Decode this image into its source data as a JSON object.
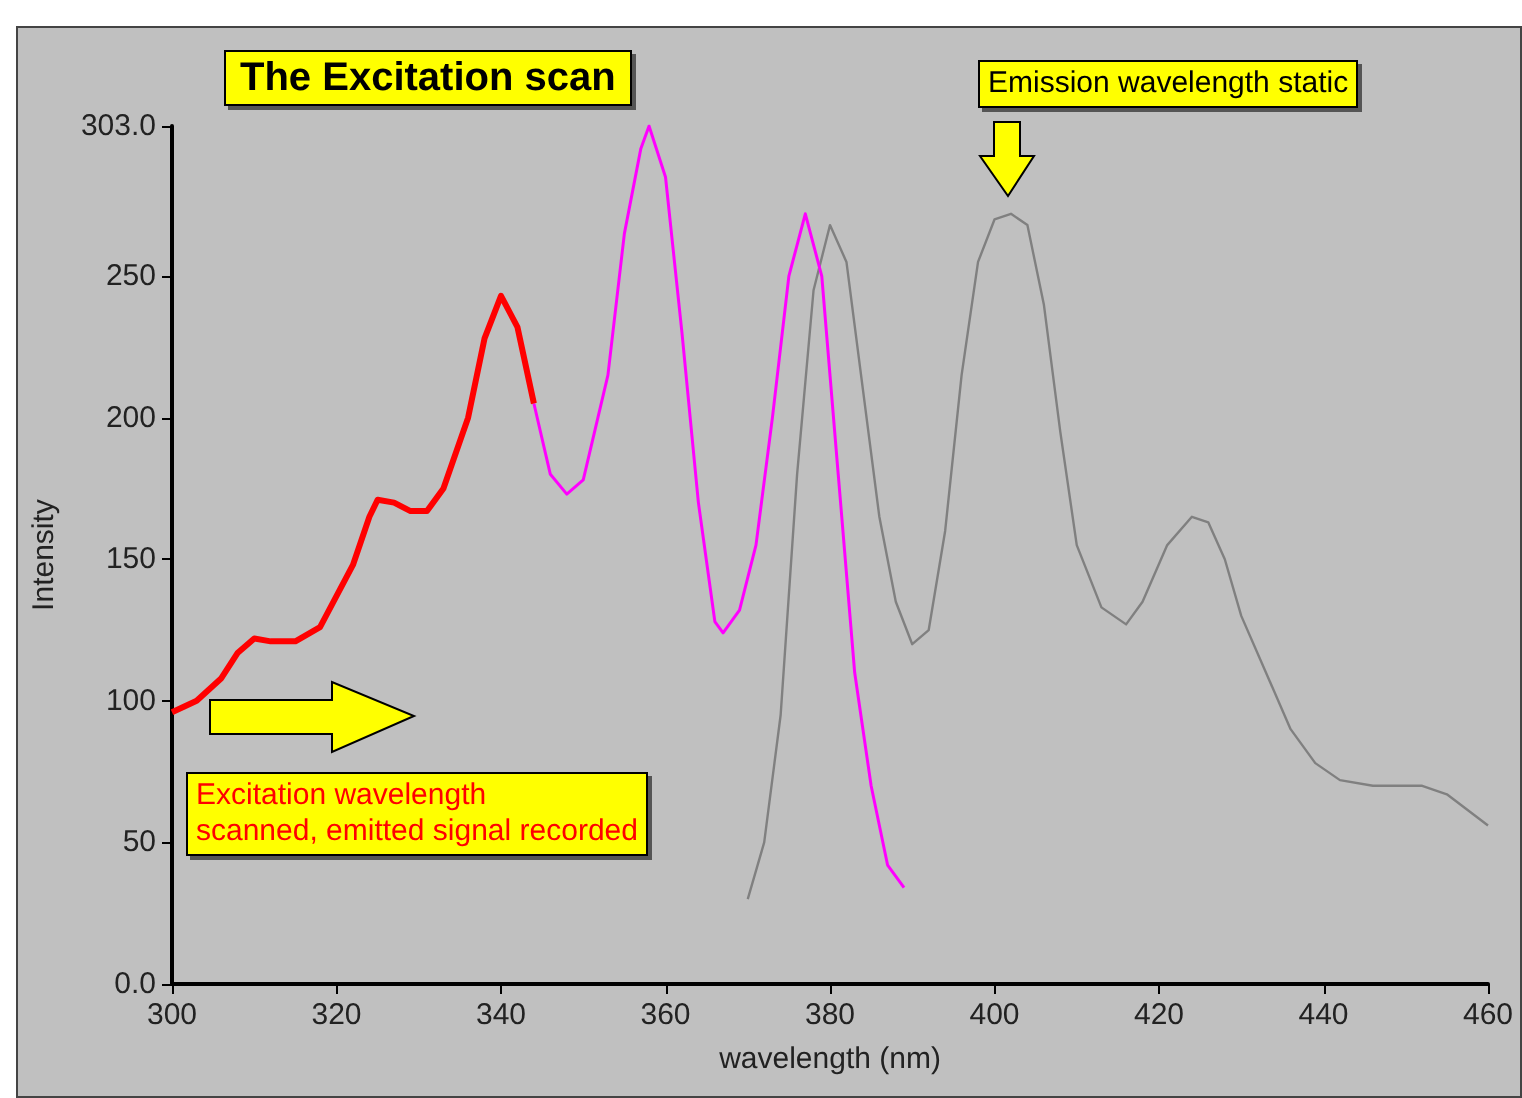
{
  "chart_data": {
    "type": "line",
    "title": "The Excitation scan",
    "xlabel": "wavelength (nm)",
    "ylabel": "Intensity",
    "annotations": [
      "Emission wavelength static",
      "Excitation wavelength\nscanned, emitted signal recorded"
    ],
    "xlim": [
      300,
      460
    ],
    "xticks": [
      300,
      320,
      340,
      360,
      380,
      400,
      420,
      440,
      460
    ],
    "ylim": [
      0,
      303
    ],
    "yticks": [
      {
        "value": 0,
        "label": "0.0"
      },
      50,
      100,
      150,
      200,
      250,
      {
        "value": 303,
        "label": "303.0"
      }
    ],
    "grid": false,
    "marker": "none",
    "line_style": "solid",
    "series": [
      {
        "color": "#ff0000",
        "x": [
          300,
          303,
          306,
          308,
          310,
          312,
          315,
          318,
          322,
          324,
          325,
          327,
          329,
          331,
          333,
          336,
          338,
          340,
          342,
          344
        ],
        "values": [
          96,
          100,
          108,
          117,
          122,
          121,
          121,
          126,
          148,
          165,
          171,
          170,
          167,
          167,
          175,
          200,
          228,
          243,
          232,
          205
        ]
      },
      {
        "color": "#ff00ff",
        "x": [
          344,
          346,
          348,
          350,
          353,
          355,
          357,
          358,
          360,
          362,
          364,
          366,
          367,
          369,
          371,
          373,
          375,
          377,
          379,
          381,
          383,
          385,
          387,
          389
        ],
        "values": [
          205,
          180,
          173,
          178,
          215,
          265,
          295,
          303,
          285,
          230,
          170,
          128,
          124,
          132,
          155,
          200,
          250,
          272,
          250,
          180,
          110,
          70,
          42,
          34
        ]
      },
      {
        "color": "#808080",
        "x": [
          370,
          372,
          374,
          376,
          378,
          380,
          382,
          384,
          386,
          388,
          390,
          392,
          394,
          396,
          398,
          400,
          402,
          404,
          406,
          408,
          410,
          413,
          416,
          418,
          421,
          424,
          426,
          428,
          430,
          433,
          436,
          439,
          442,
          446,
          452,
          455,
          460
        ],
        "values": [
          30,
          50,
          95,
          180,
          245,
          268,
          255,
          210,
          165,
          135,
          120,
          125,
          160,
          215,
          255,
          270,
          272,
          268,
          240,
          195,
          155,
          133,
          127,
          135,
          155,
          165,
          163,
          150,
          130,
          110,
          90,
          78,
          72,
          70,
          70,
          67,
          56
        ]
      }
    ]
  }
}
